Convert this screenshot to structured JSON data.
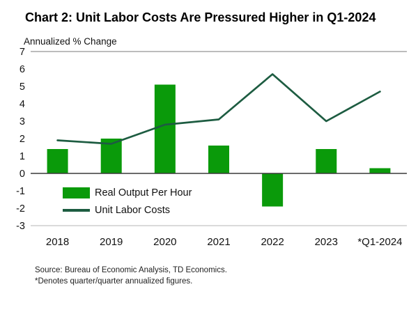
{
  "title": "Chart 2: Unit Labor Costs Are Pressured Higher in Q1-2024",
  "subtitle": "Annualized % Change",
  "footer": {
    "source": "Source: Bureau of Economic Analysis, TD Economics.",
    "note": "*Denotes quarter/quarter annualized figures."
  },
  "colors": {
    "bar": "#0a9a0a",
    "line": "#1d5c41",
    "zero_line": "#3a3a3a",
    "top_border": "#7a7a7a",
    "bottom_border": "#b5b5b5",
    "text": "#111111"
  },
  "chart_data": {
    "type": "bar",
    "subtype": "bar-and-line-combo",
    "title": "Chart 2: Unit Labor Costs Are Pressured Higher in Q1-2024",
    "ylabel": "Annualized % Change",
    "xlabel": "",
    "categories": [
      "2018",
      "2019",
      "2020",
      "2021",
      "2022",
      "2023",
      "*Q1-2024"
    ],
    "series": [
      {
        "name": "Real Output Per Hour",
        "type": "bar",
        "values": [
          1.4,
          2.0,
          5.1,
          1.6,
          -1.9,
          1.4,
          0.3
        ]
      },
      {
        "name": "Unit Labor Costs",
        "type": "line",
        "values": [
          1.9,
          1.7,
          2.8,
          3.1,
          5.7,
          3.0,
          4.7
        ]
      }
    ],
    "ylim": [
      -3,
      7
    ],
    "yticks": [
      7,
      6,
      5,
      4,
      3,
      2,
      1,
      0,
      -1,
      -2,
      -3
    ],
    "grid": false,
    "legend_position": "inside-lower-left"
  }
}
